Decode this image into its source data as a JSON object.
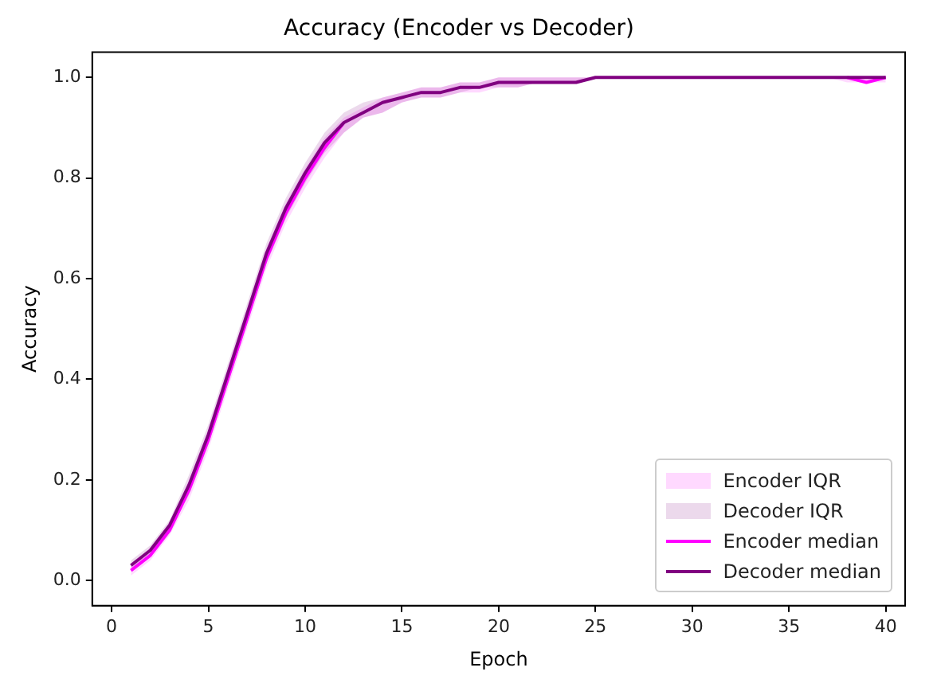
{
  "chart_data": {
    "type": "line",
    "title": "Accuracy (Encoder vs Decoder)",
    "xlabel": "Epoch",
    "ylabel": "Accuracy",
    "annotations": [
      "Encoder IQR",
      "Decoder IQR"
    ],
    "x": [
      1,
      2,
      3,
      4,
      5,
      6,
      7,
      8,
      9,
      10,
      11,
      12,
      13,
      14,
      15,
      16,
      17,
      18,
      19,
      20,
      21,
      22,
      23,
      24,
      25,
      26,
      27,
      28,
      29,
      30,
      31,
      32,
      33,
      34,
      35,
      36,
      37,
      38,
      39,
      40
    ],
    "series": [
      {
        "name": "Encoder median",
        "color": "#ff00ff",
        "values": [
          0.02,
          0.05,
          0.1,
          0.18,
          0.28,
          0.4,
          0.52,
          0.64,
          0.73,
          0.8,
          0.86,
          0.91,
          null,
          null,
          null,
          null,
          null,
          null,
          null,
          null,
          null,
          null,
          null,
          null,
          null,
          null,
          null,
          null,
          null,
          null,
          null,
          null,
          null,
          null,
          null,
          null,
          null,
          1.0,
          0.99,
          1.0
        ],
        "lower": [
          0.01,
          0.04,
          0.09,
          0.16,
          0.26,
          0.38,
          0.5,
          0.62,
          0.71,
          0.78,
          0.84,
          0.89,
          0.92,
          0.93,
          0.95,
          0.96,
          0.96,
          0.97,
          0.97,
          0.98,
          0.98,
          0.99,
          0.99,
          0.99,
          1.0,
          1.0,
          1.0,
          1.0,
          1.0,
          1.0,
          1.0,
          1.0,
          1.0,
          1.0,
          1.0,
          1.0,
          1.0,
          0.99,
          0.99,
          0.99
        ],
        "upper": [
          0.03,
          0.06,
          0.11,
          0.2,
          0.3,
          0.42,
          0.54,
          0.66,
          0.75,
          0.82,
          0.88,
          0.92,
          0.94,
          0.96,
          0.97,
          0.98,
          0.98,
          0.99,
          0.99,
          1.0,
          1.0,
          1.0,
          1.0,
          1.0,
          1.0,
          1.0,
          1.0,
          1.0,
          1.0,
          1.0,
          1.0,
          1.0,
          1.0,
          1.0,
          1.0,
          1.0,
          1.0,
          1.0,
          1.0,
          1.0
        ]
      },
      {
        "name": "Decoder median",
        "color": "#800080",
        "values": [
          0.03,
          0.06,
          0.11,
          0.19,
          0.29,
          0.41,
          0.53,
          0.65,
          0.74,
          0.81,
          0.87,
          0.91,
          0.93,
          0.95,
          0.96,
          0.97,
          0.97,
          0.98,
          0.98,
          0.99,
          0.99,
          0.99,
          0.99,
          0.99,
          1.0,
          1.0,
          1.0,
          1.0,
          1.0,
          1.0,
          1.0,
          1.0,
          1.0,
          1.0,
          1.0,
          1.0,
          1.0,
          1.0,
          1.0,
          1.0
        ],
        "lower": [
          0.02,
          0.05,
          0.1,
          0.17,
          0.27,
          0.39,
          0.51,
          0.63,
          0.72,
          0.79,
          0.85,
          0.89,
          0.92,
          0.93,
          0.95,
          0.96,
          0.96,
          0.97,
          0.98,
          0.98,
          0.98,
          0.99,
          0.99,
          0.99,
          1.0,
          1.0,
          1.0,
          1.0,
          1.0,
          1.0,
          1.0,
          1.0,
          1.0,
          1.0,
          1.0,
          1.0,
          1.0,
          1.0,
          1.0,
          1.0
        ],
        "upper": [
          0.04,
          0.07,
          0.12,
          0.21,
          0.31,
          0.43,
          0.55,
          0.67,
          0.76,
          0.83,
          0.89,
          0.93,
          0.95,
          0.96,
          0.97,
          0.98,
          0.98,
          0.99,
          0.99,
          1.0,
          1.0,
          1.0,
          1.0,
          1.0,
          1.0,
          1.0,
          1.0,
          1.0,
          1.0,
          1.0,
          1.0,
          1.0,
          1.0,
          1.0,
          1.0,
          1.0,
          1.0,
          1.0,
          1.0,
          1.0
        ]
      }
    ],
    "xlim": [
      -1,
      41
    ],
    "xticks": [
      0,
      5,
      10,
      15,
      20,
      25,
      30,
      35,
      40
    ],
    "ylim": [
      -0.05,
      1.05
    ],
    "yticks": [
      {
        "value": 0,
        "label": "0.0"
      },
      {
        "value": 0.2,
        "label": "0.2"
      },
      {
        "value": 0.4,
        "label": "0.4"
      },
      {
        "value": 0.6,
        "label": "0.6"
      },
      {
        "value": 0.8,
        "label": "0.8"
      },
      {
        "value": 1,
        "label": "1.0"
      }
    ],
    "grid": false,
    "legend": "bottom right",
    "marker": "none",
    "line_style": "solid"
  }
}
